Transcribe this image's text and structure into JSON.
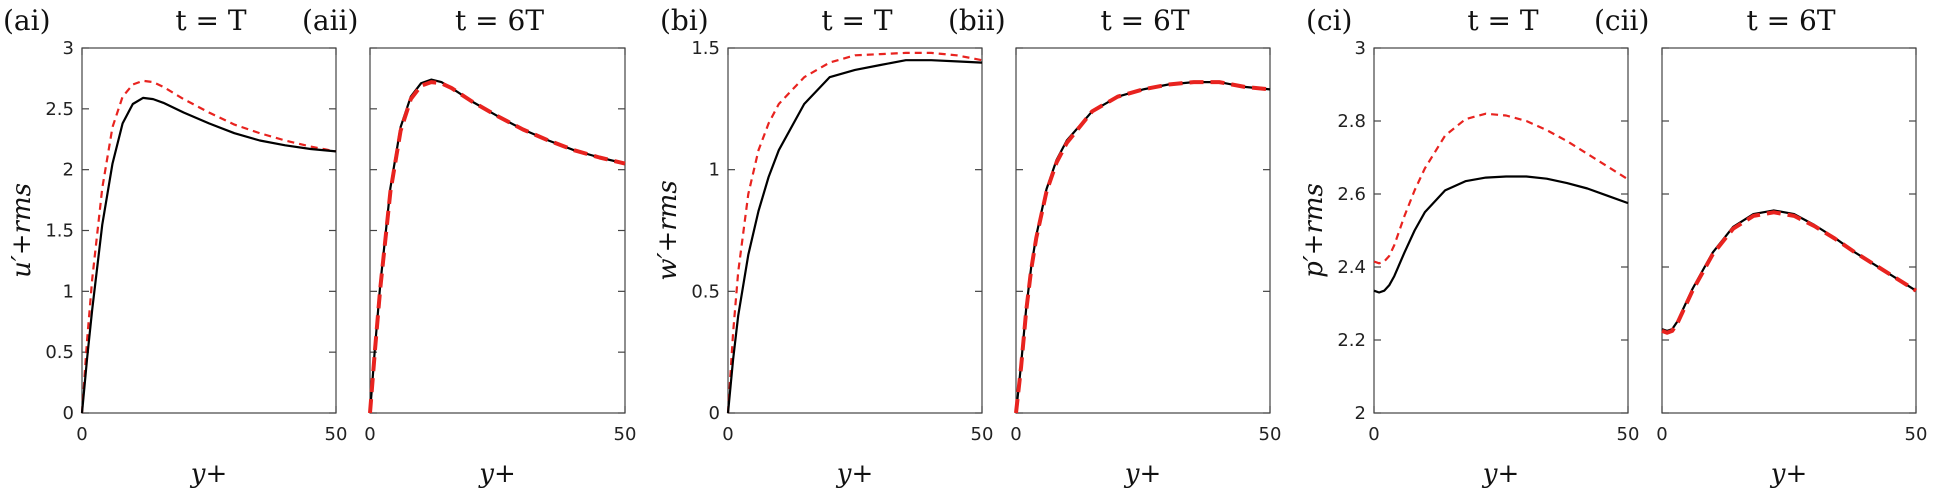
{
  "figure": {
    "panels": [
      {
        "label": "(ai)",
        "title": "t = T",
        "ylabel": "u′+rms",
        "xlabel": "y+"
      },
      {
        "label": "(aii)",
        "title": "t = 6T",
        "ylabel": "",
        "xlabel": "y+"
      },
      {
        "label": "(bi)",
        "title": "t = T",
        "ylabel": "w′+rms",
        "xlabel": "y+"
      },
      {
        "label": "(bii)",
        "title": "t = 6T",
        "ylabel": "",
        "xlabel": "y+"
      },
      {
        "label": "(ci)",
        "title": "t = T",
        "ylabel": "p′+rms",
        "xlabel": "y+"
      },
      {
        "label": "(cii)",
        "title": "t = 6T",
        "ylabel": "",
        "xlabel": "y+"
      }
    ],
    "colors": {
      "solid": "#000000",
      "dashed": "#e8231f"
    }
  },
  "chart_data": [
    {
      "type": "line",
      "panel": "(ai)",
      "title": "t = T",
      "xlabel": "y+",
      "ylabel": "u′+rms",
      "xlim": [
        0,
        50
      ],
      "ylim": [
        0,
        3
      ],
      "xticks": [
        0,
        50
      ],
      "yticks": [
        0,
        0.5,
        1,
        1.5,
        2,
        2.5,
        3
      ],
      "ytick_labels": [
        "0",
        "0.5",
        "1",
        "1.5",
        "2",
        "2.5",
        "3"
      ],
      "grid": false,
      "series": [
        {
          "style": "solid",
          "x": [
            0,
            1,
            2,
            4,
            6,
            8,
            10,
            12,
            14,
            16,
            20,
            25,
            30,
            35,
            40,
            45,
            50
          ],
          "y": [
            0,
            0.45,
            0.85,
            1.55,
            2.05,
            2.38,
            2.54,
            2.59,
            2.58,
            2.55,
            2.47,
            2.38,
            2.3,
            2.24,
            2.2,
            2.17,
            2.15
          ]
        },
        {
          "style": "dashed",
          "x": [
            0,
            1,
            2,
            4,
            6,
            8,
            10,
            12,
            14,
            16,
            20,
            25,
            30,
            35,
            40,
            45,
            50
          ],
          "y": [
            0,
            0.6,
            1.1,
            1.85,
            2.35,
            2.6,
            2.7,
            2.73,
            2.72,
            2.68,
            2.58,
            2.47,
            2.37,
            2.3,
            2.24,
            2.19,
            2.15
          ]
        }
      ]
    },
    {
      "type": "line",
      "panel": "(aii)",
      "title": "t = 6T",
      "xlabel": "y+",
      "ylabel": "",
      "xlim": [
        0,
        50
      ],
      "ylim": [
        0,
        3
      ],
      "xticks": [
        0,
        50
      ],
      "yticks": [
        0,
        0.5,
        1,
        1.5,
        2,
        2.5,
        3
      ],
      "ytick_labels": [],
      "grid": false,
      "series": [
        {
          "style": "solid",
          "x": [
            0,
            1,
            2,
            4,
            6,
            8,
            10,
            12,
            14,
            16,
            20,
            25,
            30,
            35,
            40,
            45,
            50
          ],
          "y": [
            0,
            0.55,
            1.05,
            1.85,
            2.35,
            2.6,
            2.71,
            2.74,
            2.72,
            2.67,
            2.56,
            2.44,
            2.33,
            2.24,
            2.16,
            2.1,
            2.05
          ]
        },
        {
          "style": "dashed",
          "x": [
            0,
            1,
            2,
            4,
            6,
            8,
            10,
            12,
            14,
            16,
            20,
            25,
            30,
            35,
            40,
            45,
            50
          ],
          "y": [
            0,
            0.53,
            1.02,
            1.82,
            2.32,
            2.58,
            2.69,
            2.72,
            2.71,
            2.67,
            2.56,
            2.44,
            2.33,
            2.24,
            2.16,
            2.1,
            2.05
          ]
        }
      ]
    },
    {
      "type": "line",
      "panel": "(bi)",
      "title": "t = T",
      "xlabel": "y+",
      "ylabel": "w′+rms",
      "xlim": [
        0,
        50
      ],
      "ylim": [
        0,
        1.5
      ],
      "xticks": [
        0,
        50
      ],
      "yticks": [
        0,
        0.5,
        1,
        1.5
      ],
      "ytick_labels": [
        "0",
        "0.5",
        "1",
        "1.5"
      ],
      "grid": false,
      "series": [
        {
          "style": "solid",
          "x": [
            0,
            1,
            2,
            4,
            6,
            8,
            10,
            15,
            20,
            25,
            30,
            35,
            40,
            45,
            50
          ],
          "y": [
            0,
            0.22,
            0.4,
            0.65,
            0.83,
            0.97,
            1.08,
            1.27,
            1.38,
            1.41,
            1.43,
            1.45,
            1.45,
            1.445,
            1.44
          ]
        },
        {
          "style": "dashed",
          "x": [
            0,
            1,
            2,
            4,
            6,
            8,
            10,
            15,
            20,
            25,
            30,
            35,
            40,
            45,
            50
          ],
          "y": [
            0,
            0.33,
            0.58,
            0.9,
            1.08,
            1.19,
            1.27,
            1.38,
            1.44,
            1.47,
            1.475,
            1.48,
            1.48,
            1.47,
            1.45
          ]
        }
      ]
    },
    {
      "type": "line",
      "panel": "(bii)",
      "title": "t = 6T",
      "xlabel": "y+",
      "ylabel": "",
      "xlim": [
        0,
        50
      ],
      "ylim": [
        0,
        1.5
      ],
      "xticks": [
        0,
        50
      ],
      "yticks": [
        0,
        0.5,
        1,
        1.5
      ],
      "ytick_labels": [],
      "grid": false,
      "series": [
        {
          "style": "solid",
          "x": [
            0,
            1,
            2,
            3,
            4,
            6,
            8,
            10,
            15,
            20,
            25,
            30,
            35,
            40,
            45,
            50
          ],
          "y": [
            0,
            0.2,
            0.43,
            0.6,
            0.73,
            0.92,
            1.04,
            1.12,
            1.24,
            1.3,
            1.33,
            1.35,
            1.36,
            1.36,
            1.34,
            1.33
          ]
        },
        {
          "style": "dashed",
          "x": [
            0,
            1,
            2,
            3,
            4,
            6,
            8,
            10,
            15,
            20,
            25,
            30,
            35,
            40,
            45,
            50
          ],
          "y": [
            0,
            0.19,
            0.42,
            0.59,
            0.72,
            0.91,
            1.03,
            1.11,
            1.24,
            1.3,
            1.33,
            1.35,
            1.36,
            1.36,
            1.34,
            1.33
          ]
        }
      ]
    },
    {
      "type": "line",
      "panel": "(ci)",
      "title": "t = T",
      "xlabel": "y+",
      "ylabel": "p′+rms",
      "xlim": [
        0,
        50
      ],
      "ylim": [
        2,
        3
      ],
      "xticks": [
        0,
        50
      ],
      "yticks": [
        2,
        2.2,
        2.4,
        2.6,
        2.8,
        3
      ],
      "ytick_labels": [
        "2",
        "2.2",
        "2.4",
        "2.6",
        "2.8",
        "3"
      ],
      "grid": false,
      "series": [
        {
          "style": "solid",
          "x": [
            0,
            1,
            2,
            3,
            4,
            6,
            8,
            10,
            14,
            18,
            22,
            26,
            30,
            34,
            38,
            42,
            46,
            50
          ],
          "y": [
            2.335,
            2.33,
            2.335,
            2.35,
            2.375,
            2.44,
            2.5,
            2.55,
            2.61,
            2.635,
            2.645,
            2.648,
            2.648,
            2.642,
            2.63,
            2.615,
            2.595,
            2.575
          ]
        },
        {
          "style": "dashed",
          "x": [
            0,
            1,
            2,
            3,
            4,
            6,
            8,
            10,
            14,
            18,
            22,
            26,
            30,
            34,
            38,
            42,
            46,
            50
          ],
          "y": [
            2.415,
            2.41,
            2.415,
            2.43,
            2.46,
            2.54,
            2.61,
            2.67,
            2.76,
            2.805,
            2.82,
            2.815,
            2.8,
            2.775,
            2.745,
            2.71,
            2.675,
            2.64
          ]
        }
      ]
    },
    {
      "type": "line",
      "panel": "(cii)",
      "title": "t = 6T",
      "xlabel": "y+",
      "ylabel": "",
      "xlim": [
        0,
        50
      ],
      "ylim": [
        2,
        3
      ],
      "xticks": [
        0,
        50
      ],
      "yticks": [
        2,
        2.2,
        2.4,
        2.6,
        2.8,
        3
      ],
      "ytick_labels": [],
      "grid": false,
      "series": [
        {
          "style": "solid",
          "x": [
            0,
            1,
            2,
            3,
            4,
            6,
            8,
            10,
            14,
            18,
            22,
            26,
            30,
            34,
            38,
            42,
            46,
            50
          ],
          "y": [
            2.23,
            2.225,
            2.23,
            2.25,
            2.28,
            2.34,
            2.39,
            2.44,
            2.51,
            2.545,
            2.555,
            2.545,
            2.515,
            2.48,
            2.44,
            2.405,
            2.37,
            2.335
          ]
        },
        {
          "style": "dashed",
          "x": [
            0,
            1,
            2,
            3,
            4,
            6,
            8,
            10,
            14,
            18,
            22,
            26,
            30,
            34,
            38,
            42,
            46,
            50
          ],
          "y": [
            2.225,
            2.22,
            2.225,
            2.245,
            2.275,
            2.335,
            2.385,
            2.435,
            2.505,
            2.54,
            2.55,
            2.54,
            2.512,
            2.478,
            2.44,
            2.405,
            2.37,
            2.335
          ]
        }
      ]
    }
  ]
}
